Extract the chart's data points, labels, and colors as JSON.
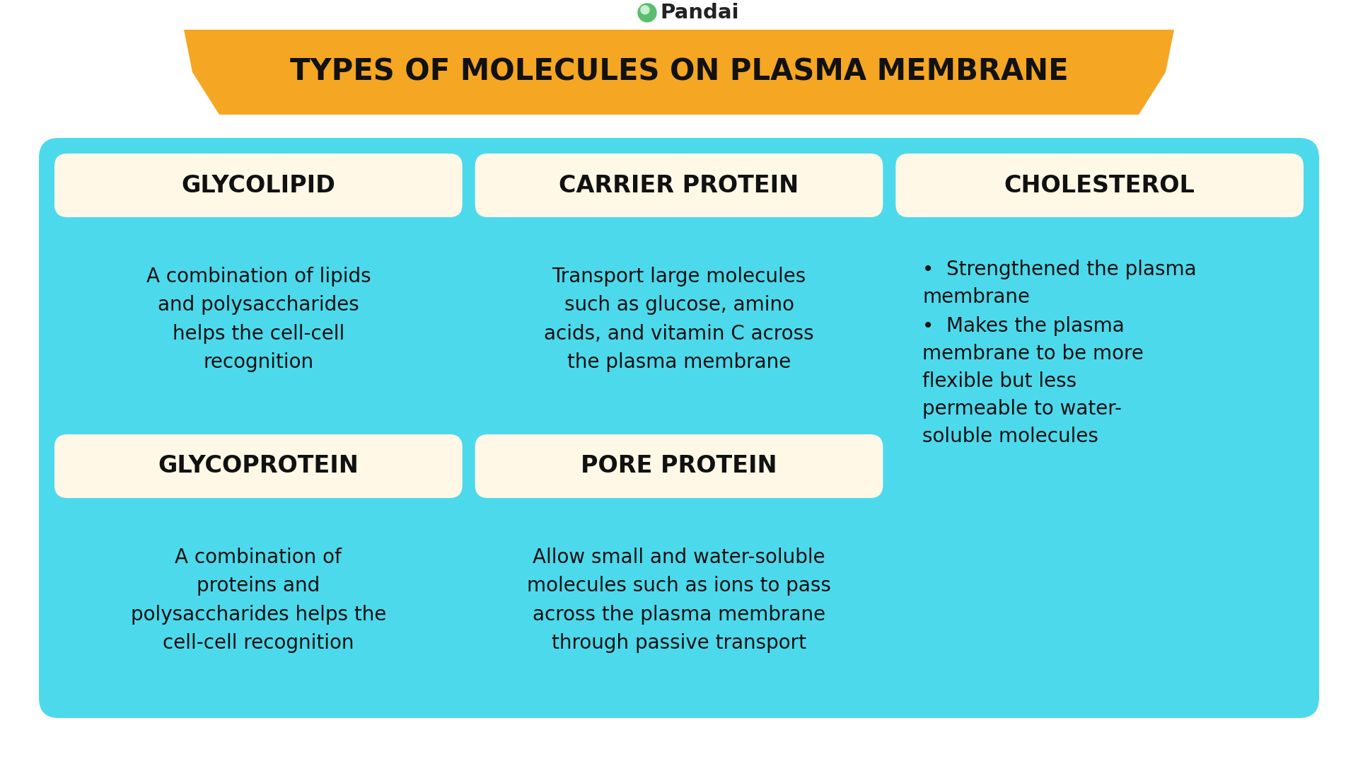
{
  "title": "TYPES OF MOLECULES ON PLASMA MEMBRANE",
  "pandai_text": "Pandai",
  "bg_color": "#ffffff",
  "banner_color": "#F5A623",
  "banner_text_color": "#111111",
  "cell_bg_color": "#4DD9EC",
  "header_bg_color": "#FFF8E7",
  "body_text_color": "#111111",
  "cells": [
    {
      "row": 0,
      "col": 0,
      "header": "GLYCOLIPID",
      "body": "A combination of lipids\nand polysaccharides\nhelps the cell-cell\nrecognition",
      "bullet": false
    },
    {
      "row": 0,
      "col": 1,
      "header": "CARRIER PROTEIN",
      "body": "Transport large molecules\nsuch as glucose, amino\nacids, and vitamin C across\nthe plasma membrane",
      "bullet": false
    },
    {
      "row": 1,
      "col": 0,
      "header": "GLYCOPROTEIN",
      "body": "A combination of\nproteins and\npolysaccharides helps the\ncell-cell recognition",
      "bullet": false
    },
    {
      "row": 1,
      "col": 1,
      "header": "PORE PROTEIN",
      "body": "Allow small and water-soluble\nmolecules such as ions to pass\nacross the plasma membrane\nthrough passive transport",
      "bullet": false
    }
  ],
  "cholesterol": {
    "header": "CHOLESTEROL",
    "bullet1": "Strengthened the plasma\nmembrane",
    "bullet2": "Makes the plasma\nmembrane to be more\nflexible but less\npermeable to water-\nsoluble molecules"
  }
}
